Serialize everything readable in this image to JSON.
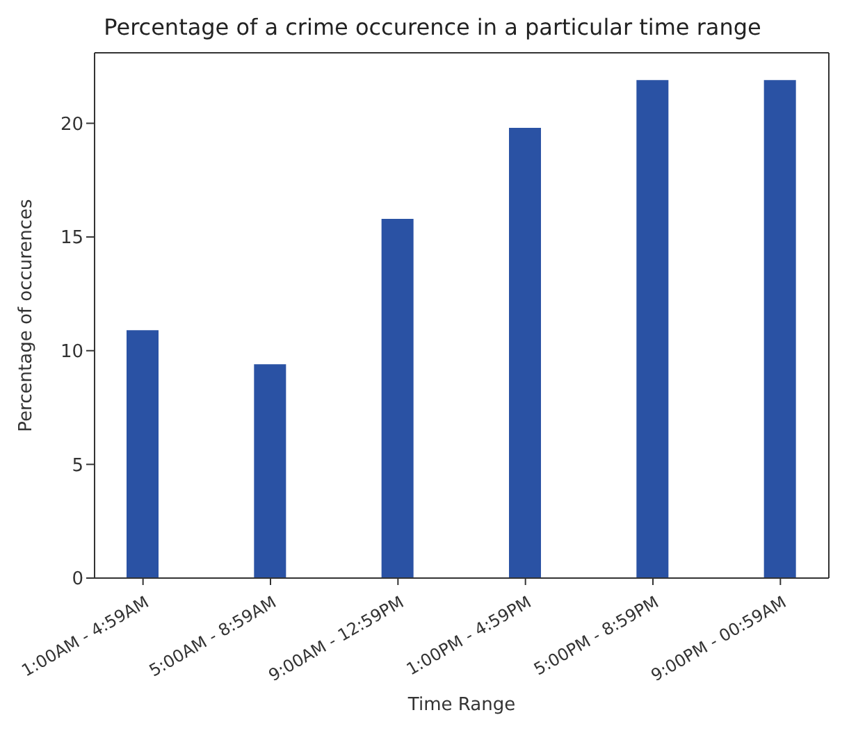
{
  "chart_data": {
    "type": "bar",
    "title": "Percentage of a crime occurence in a particular time range",
    "xlabel": "Time Range",
    "ylabel": "Percentage of occurences",
    "categories": [
      "1:00AM - 4:59AM",
      "5:00AM - 8:59AM",
      "9:00AM - 12:59PM",
      "1:00PM - 4:59PM",
      "5:00PM - 8:59PM",
      "9:00PM - 00:59AM"
    ],
    "values": [
      10.9,
      9.4,
      15.8,
      19.8,
      21.9,
      21.9
    ],
    "color": "#2a52a4",
    "ylim": [
      0,
      23.1
    ],
    "yticks": [
      0,
      5,
      10,
      15,
      20
    ],
    "grid": false,
    "legend": false
  }
}
